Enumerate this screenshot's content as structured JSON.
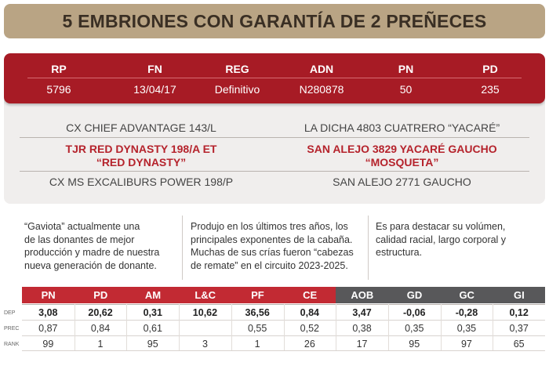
{
  "title": "5 EMBRIONES CON GARANTÍA DE 2 PREÑECES",
  "identification": {
    "labels": [
      "RP",
      "FN",
      "REG",
      "ADN",
      "PN",
      "PD"
    ],
    "values": [
      "5796",
      "13/04/17",
      "Definitivo",
      "N280878",
      "50",
      "235"
    ]
  },
  "pedigree": {
    "sire_sire": "CX CHIEF ADVANTAGE 143/L",
    "sire_line1": "TJR RED DYNASTY 198/A ET",
    "sire_line2": "“RED DYNASTY”",
    "sire_dam": "CX MS EXCALIBURS POWER 198/P",
    "dam_sire": "LA DICHA 4803 CUATRERO “YACARÉ”",
    "dam_line1": "SAN ALEJO 3829 YACARÉ GAUCHO",
    "dam_line2": "“MOSQUETA”",
    "dam_dam": "SAN ALEJO 2771 GAUCHO"
  },
  "descriptions": [
    [
      "“Gaviota” actualmente una",
      "de las donantes de mejor",
      "producción y madre de nuestra",
      "nueva generación de donante."
    ],
    [
      "Produjo en los últimos tres años, los",
      "principales exponentes de la cabaña.",
      "Muchas de sus crías fueron “cabezas",
      "de remate” en el circuito 2023-2025."
    ],
    [
      "Es para destacar su volúmen,",
      "calidad racial, largo corporal y",
      "estructura."
    ]
  ],
  "stats": {
    "columns": [
      "PN",
      "PD",
      "AM",
      "L&C",
      "PF",
      "CE",
      "AOB",
      "GD",
      "GC",
      "GI"
    ],
    "colors": {
      "red": "#c22a33",
      "grey": "#58585a"
    },
    "rows": [
      {
        "label": "DEP",
        "values": [
          "3,08",
          "20,62",
          "0,31",
          "10,62",
          "36,56",
          "0,84",
          "3,47",
          "-0,06",
          "-0,28",
          "0,12"
        ]
      },
      {
        "label": "PREC",
        "values": [
          "0,87",
          "0,84",
          "0,61",
          "",
          "0,55",
          "0,52",
          "0,38",
          "0,35",
          "0,35",
          "0,37"
        ]
      },
      {
        "label": "RANK",
        "values": [
          "99",
          "1",
          "95",
          "3",
          "1",
          "26",
          "17",
          "95",
          "97",
          "65"
        ]
      }
    ]
  }
}
